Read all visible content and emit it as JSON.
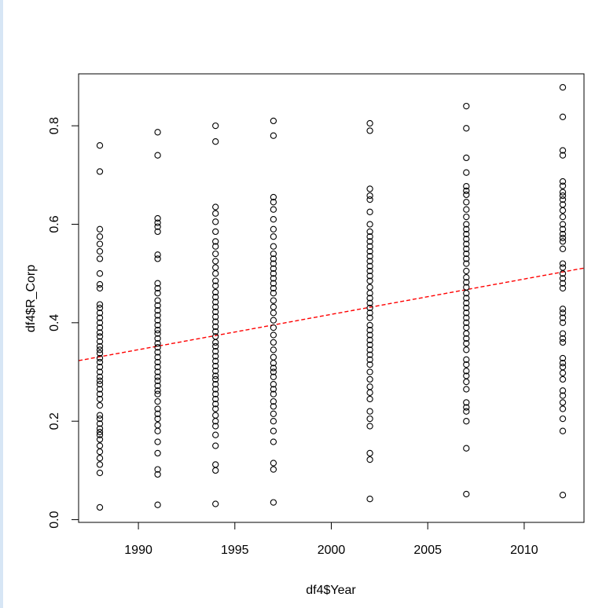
{
  "chart_data": {
    "type": "scatter",
    "title": "",
    "xlabel": "df4$Year",
    "ylabel": "df4$R_Corp",
    "xlim": [
      1986.9,
      2013.1
    ],
    "ylim": [
      -0.0055,
      0.9055
    ],
    "x_ticks": [
      1990,
      1995,
      2000,
      2005,
      2010
    ],
    "y_ticks": [
      0.0,
      0.2,
      0.4,
      0.6,
      0.8
    ],
    "y_tick_labels": [
      "0.0",
      "0.2",
      "0.4",
      "0.6",
      "0.8"
    ],
    "grid": false,
    "legend": "none",
    "point_color": "#000000",
    "fit_line_color": "#ff0000",
    "fit_line": {
      "x": [
        1986.9,
        2013.1
      ],
      "y": [
        0.323,
        0.511
      ]
    },
    "series": [
      {
        "x": 1988,
        "y": [
          0.025,
          0.095,
          0.112,
          0.125,
          0.138,
          0.15,
          0.163,
          0.172,
          0.178,
          0.185,
          0.195,
          0.205,
          0.212,
          0.232,
          0.245,
          0.255,
          0.265,
          0.275,
          0.282,
          0.29,
          0.3,
          0.31,
          0.32,
          0.328,
          0.338,
          0.345,
          0.352,
          0.362,
          0.372,
          0.38,
          0.39,
          0.4,
          0.41,
          0.42,
          0.43,
          0.437,
          0.47,
          0.478,
          0.5,
          0.53,
          0.545,
          0.56,
          0.575,
          0.59,
          0.707,
          0.76
        ]
      },
      {
        "x": 1991,
        "y": [
          0.03,
          0.092,
          0.102,
          0.135,
          0.158,
          0.18,
          0.192,
          0.205,
          0.215,
          0.225,
          0.24,
          0.255,
          0.262,
          0.272,
          0.282,
          0.29,
          0.3,
          0.31,
          0.32,
          0.33,
          0.34,
          0.35,
          0.358,
          0.368,
          0.378,
          0.385,
          0.395,
          0.405,
          0.415,
          0.425,
          0.435,
          0.445,
          0.46,
          0.47,
          0.48,
          0.53,
          0.538,
          0.585,
          0.595,
          0.603,
          0.612,
          0.74,
          0.787
        ]
      },
      {
        "x": 1994,
        "y": [
          0.032,
          0.1,
          0.112,
          0.15,
          0.172,
          0.19,
          0.2,
          0.212,
          0.225,
          0.235,
          0.245,
          0.255,
          0.265,
          0.275,
          0.285,
          0.292,
          0.302,
          0.312,
          0.322,
          0.332,
          0.342,
          0.352,
          0.36,
          0.372,
          0.382,
          0.392,
          0.402,
          0.412,
          0.422,
          0.432,
          0.442,
          0.452,
          0.462,
          0.475,
          0.485,
          0.5,
          0.512,
          0.525,
          0.54,
          0.555,
          0.565,
          0.585,
          0.605,
          0.622,
          0.635,
          0.768,
          0.8
        ]
      },
      {
        "x": 1997,
        "y": [
          0.035,
          0.102,
          0.115,
          0.158,
          0.18,
          0.2,
          0.215,
          0.23,
          0.24,
          0.255,
          0.265,
          0.275,
          0.29,
          0.3,
          0.308,
          0.318,
          0.33,
          0.345,
          0.36,
          0.375,
          0.39,
          0.405,
          0.42,
          0.432,
          0.445,
          0.46,
          0.47,
          0.48,
          0.49,
          0.5,
          0.51,
          0.52,
          0.53,
          0.54,
          0.555,
          0.575,
          0.59,
          0.61,
          0.63,
          0.645,
          0.655,
          0.78,
          0.81
        ]
      },
      {
        "x": 2002,
        "y": [
          0.042,
          0.122,
          0.135,
          0.19,
          0.205,
          0.22,
          0.245,
          0.258,
          0.27,
          0.285,
          0.3,
          0.315,
          0.325,
          0.335,
          0.345,
          0.355,
          0.365,
          0.375,
          0.385,
          0.395,
          0.41,
          0.42,
          0.43,
          0.44,
          0.45,
          0.46,
          0.472,
          0.485,
          0.495,
          0.505,
          0.515,
          0.525,
          0.535,
          0.545,
          0.555,
          0.565,
          0.575,
          0.585,
          0.6,
          0.625,
          0.65,
          0.658,
          0.672,
          0.79,
          0.805
        ]
      },
      {
        "x": 2007,
        "y": [
          0.052,
          0.145,
          0.2,
          0.22,
          0.228,
          0.238,
          0.265,
          0.28,
          0.292,
          0.302,
          0.315,
          0.325,
          0.345,
          0.358,
          0.368,
          0.378,
          0.39,
          0.4,
          0.41,
          0.42,
          0.43,
          0.44,
          0.45,
          0.46,
          0.472,
          0.482,
          0.492,
          0.505,
          0.52,
          0.53,
          0.54,
          0.55,
          0.56,
          0.57,
          0.58,
          0.59,
          0.6,
          0.615,
          0.63,
          0.645,
          0.66,
          0.668,
          0.677,
          0.705,
          0.735,
          0.795,
          0.84
        ]
      },
      {
        "x": 2012,
        "y": [
          0.05,
          0.18,
          0.205,
          0.225,
          0.238,
          0.252,
          0.262,
          0.285,
          0.298,
          0.31,
          0.318,
          0.328,
          0.36,
          0.368,
          0.378,
          0.4,
          0.41,
          0.42,
          0.428,
          0.47,
          0.48,
          0.49,
          0.5,
          0.512,
          0.52,
          0.55,
          0.565,
          0.572,
          0.58,
          0.59,
          0.6,
          0.615,
          0.628,
          0.64,
          0.65,
          0.658,
          0.665,
          0.678,
          0.687,
          0.74,
          0.75,
          0.818,
          0.878
        ]
      }
    ]
  }
}
